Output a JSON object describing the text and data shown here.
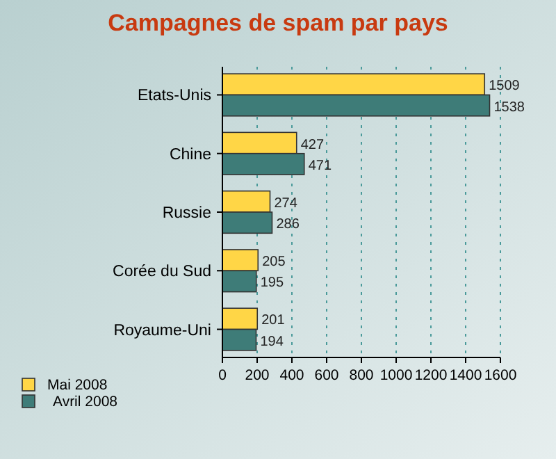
{
  "chart_data": {
    "type": "bar",
    "orientation": "horizontal",
    "title": "Campagnes de spam par pays",
    "categories": [
      "Etats-Unis",
      "Chine",
      "Russie",
      "Corée du Sud",
      "Royaume-Uni"
    ],
    "series": [
      {
        "name": "Mai 2008",
        "color": "#ffd646",
        "values": [
          1509,
          427,
          274,
          205,
          201
        ]
      },
      {
        "name": "Avril 2008",
        "color": "#3e7c78",
        "values": [
          1538,
          471,
          286,
          195,
          194
        ]
      }
    ],
    "xlim": [
      0,
      1600
    ],
    "xticks": [
      0,
      200,
      400,
      600,
      800,
      1000,
      1200,
      1400,
      1600
    ],
    "grid": "x",
    "legend": "bottom left",
    "data_labels": true
  }
}
